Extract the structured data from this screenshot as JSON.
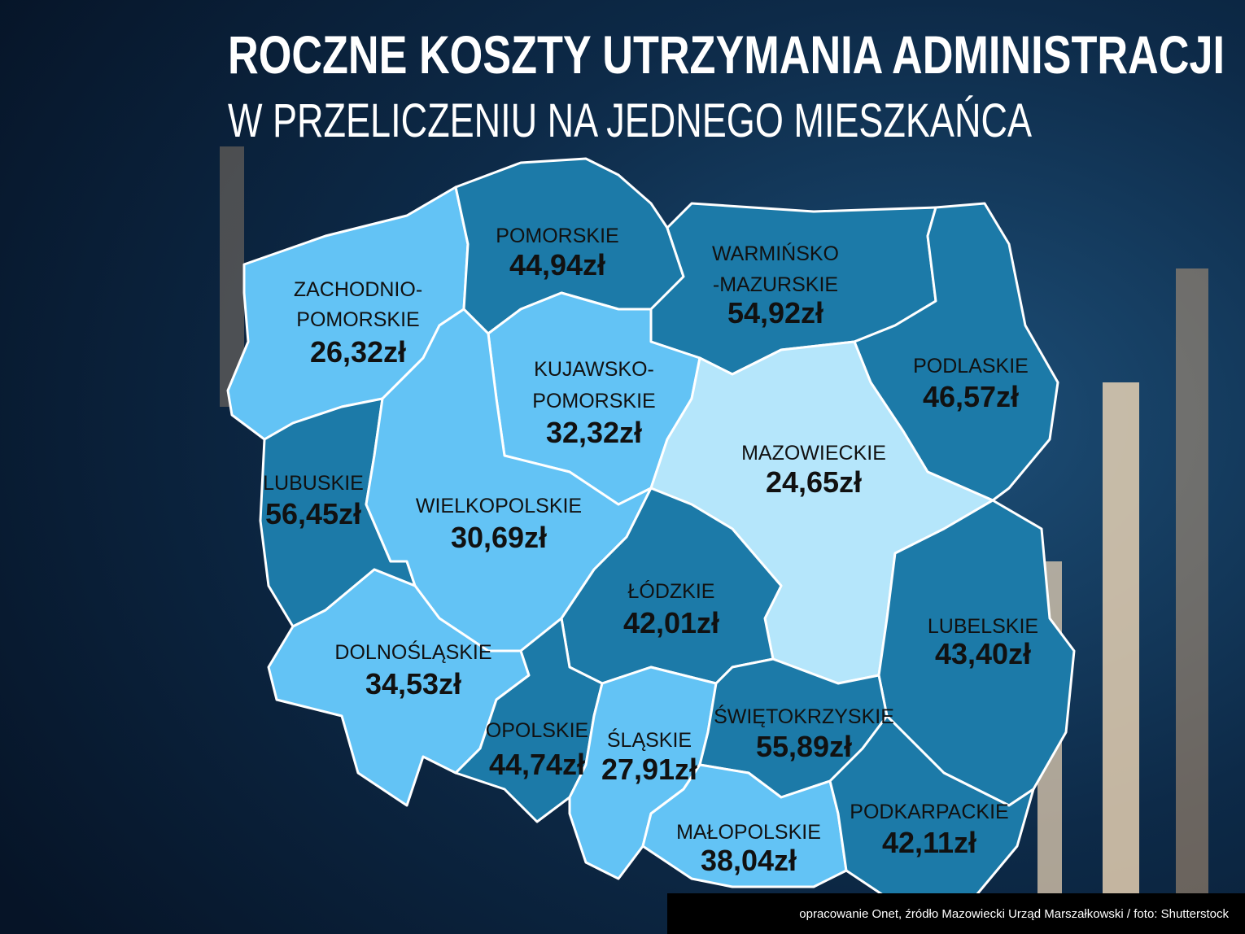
{
  "title": "ROCZNE KOSZTY UTRZYMANIA ADMINISTRACJI",
  "subtitle": "W PRZELICZENIU NA JEDNEGO MIESZKAŃCA",
  "source": "opracowanie Onet, źródło Mazowiecki Urząd Marszałkowski / foto: Shutterstock",
  "regions": [
    {
      "name": [
        "ZACHODNIO-",
        "POMORSKIE"
      ],
      "value": "26,32zł",
      "color": "#63c3f5"
    },
    {
      "name": [
        "POMORSKIE"
      ],
      "value": "44,94zł",
      "color": "#1c7aa8"
    },
    {
      "name": [
        "WARMIŃSKO",
        "-MAZURSKIE"
      ],
      "value": "54,92zł",
      "color": "#1c7aa8"
    },
    {
      "name": [
        "PODLASKIE"
      ],
      "value": "46,57zł",
      "color": "#1c7aa8"
    },
    {
      "name": [
        "KUJAWSKO-",
        "POMORSKIE"
      ],
      "value": "32,32zł",
      "color": "#63c3f5"
    },
    {
      "name": [
        "MAZOWIECKIE"
      ],
      "value": "24,65zł",
      "color": "#b5e6fb"
    },
    {
      "name": [
        "LUBUSKIE"
      ],
      "value": "56,45zł",
      "color": "#1c7aa8"
    },
    {
      "name": [
        "WIELKOPOLSKIE"
      ],
      "value": "30,69zł",
      "color": "#63c3f5"
    },
    {
      "name": [
        "ŁÓDZKIE"
      ],
      "value": "42,01zł",
      "color": "#1c7aa8"
    },
    {
      "name": [
        "LUBELSKIE"
      ],
      "value": "43,40zł",
      "color": "#1c7aa8"
    },
    {
      "name": [
        "DOLNOŚLĄSKIE"
      ],
      "value": "34,53zł",
      "color": "#63c3f5"
    },
    {
      "name": [
        "OPOLSKIE"
      ],
      "value": "44,74zł",
      "color": "#1c7aa8"
    },
    {
      "name": [
        "ŚLĄSKIE"
      ],
      "value": "27,91zł",
      "color": "#63c3f5"
    },
    {
      "name": [
        "ŚWIĘTOKRZYSKIE"
      ],
      "value": "55,89zł",
      "color": "#1c7aa8"
    },
    {
      "name": [
        "MAŁOPOLSKIE"
      ],
      "value": "38,04zł",
      "color": "#63c3f5"
    },
    {
      "name": [
        "PODKARPACKIE"
      ],
      "value": "42,11zł",
      "color": "#1c7aa8"
    }
  ]
}
